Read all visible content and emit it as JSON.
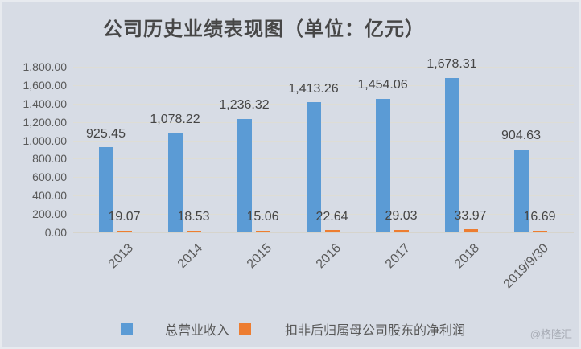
{
  "title": "公司历史业绩表现图（单位：亿元）",
  "watermark": "@格隆汇",
  "colors": {
    "background": "#d7dce5",
    "revenue_bar": "#5b9bd5",
    "profit_bar": "#ed7d31",
    "title_text": "#474747",
    "axis_text": "#595959",
    "data_label_text": "#454545",
    "gridline": "#deddd5",
    "watermark_text": "#a8acb5"
  },
  "chart_data": {
    "type": "bar",
    "title": "公司历史业绩表现图（单位：亿元）",
    "categories": [
      "2013",
      "2014",
      "2015",
      "2016",
      "2017",
      "2018",
      "2019/9/30"
    ],
    "series": [
      {
        "name": "总营业收入",
        "values": [
          925.45,
          1078.22,
          1236.32,
          1413.26,
          1454.06,
          1678.31,
          904.63
        ],
        "labels": [
          "925.45",
          "1,078.22",
          "1,236.32",
          "1,413.26",
          "1,454.06",
          "1,678.31",
          "904.63"
        ]
      },
      {
        "name": "扣非后归属母公司股东的净利润",
        "values": [
          19.07,
          18.53,
          15.06,
          22.64,
          29.03,
          33.97,
          16.69
        ],
        "labels": [
          "19.07",
          "18.53",
          "15.06",
          "22.64",
          "29.03",
          "33.97",
          "16.69"
        ]
      }
    ],
    "ylim": [
      0,
      1800
    ],
    "ytick_step": 200,
    "ytick_labels": [
      "1,800.00",
      "1,600.00",
      "1,400.00",
      "1,200.00",
      "1,000.00",
      "800.00",
      "600.00",
      "400.00",
      "200.00",
      "0.00"
    ],
    "grid": true,
    "legend_position": "bottom"
  }
}
